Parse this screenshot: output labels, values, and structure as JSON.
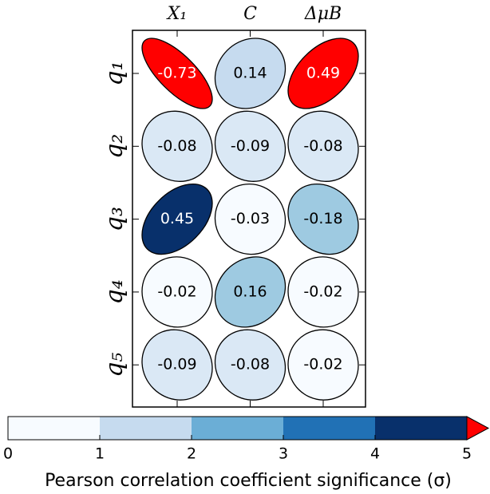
{
  "chart_data": {
    "type": "ellipse-matrix",
    "columns": [
      "X₁",
      "C",
      "ΔμB"
    ],
    "rows": [
      "q₁",
      "q₂",
      "q₃",
      "q₄",
      "q₅"
    ],
    "values": [
      [
        -0.73,
        0.14,
        0.49
      ],
      [
        -0.08,
        -0.09,
        -0.08
      ],
      [
        0.45,
        -0.03,
        -0.18
      ],
      [
        -0.02,
        0.16,
        -0.02
      ],
      [
        -0.09,
        -0.08,
        -0.02
      ]
    ],
    "colors": [
      [
        "#ff0000",
        "#c6dbef",
        "#ff0000"
      ],
      [
        "#dae8f5",
        "#dae8f5",
        "#dae8f5"
      ],
      [
        "#08306b",
        "#f7fbff",
        "#9ecae1"
      ],
      [
        "#f7fbff",
        "#9ecae1",
        "#f7fbff"
      ],
      [
        "#dae8f5",
        "#dae8f5",
        "#f7fbff"
      ]
    ],
    "colorbar": {
      "label": "Pearson correlation coefficient significance (σ)",
      "lim": [
        0,
        5
      ],
      "ticks": [
        0,
        1,
        2,
        3,
        4,
        5
      ],
      "colors": [
        "#f7fbff",
        "#c6dbef",
        "#6baed6",
        "#2171b5",
        "#08306b"
      ],
      "extend_color": "#ff0000"
    }
  }
}
